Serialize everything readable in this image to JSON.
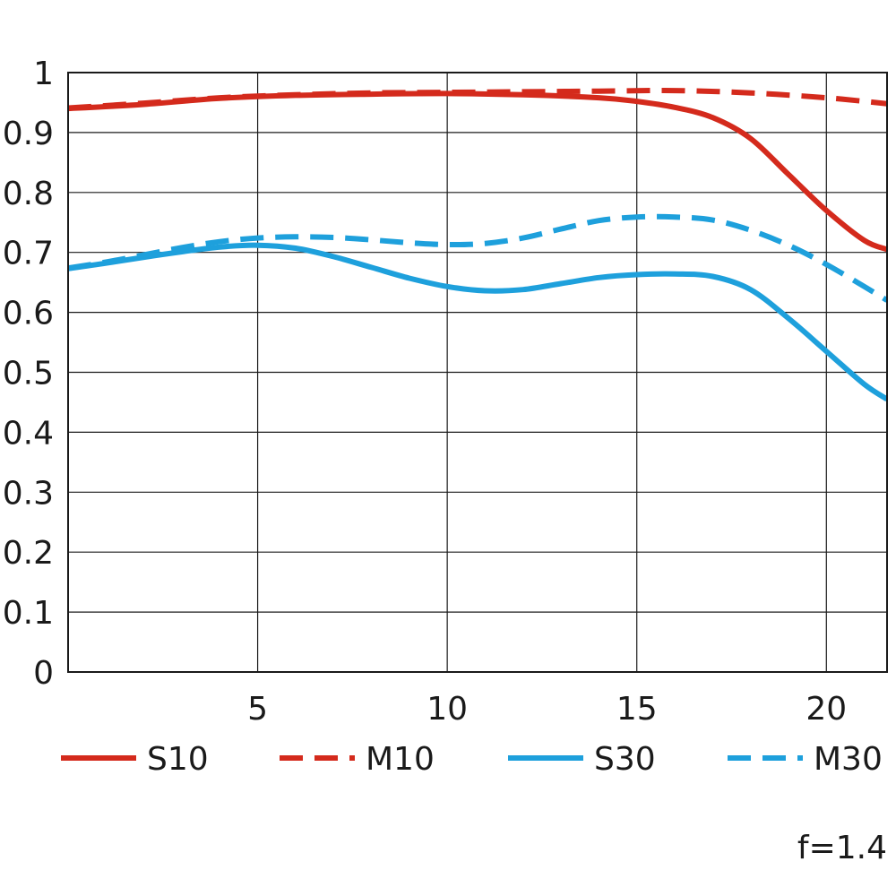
{
  "chart_data": {
    "type": "line",
    "title": "",
    "xlabel": "",
    "ylabel": "",
    "xlim": [
      0,
      21.6
    ],
    "ylim": [
      0,
      1
    ],
    "x_ticks": [
      5,
      10,
      15,
      20
    ],
    "x_tick_labels": [
      "5",
      "10",
      "15",
      "20"
    ],
    "y_ticks": [
      0,
      0.1,
      0.2,
      0.3,
      0.4,
      0.5,
      0.6,
      0.7,
      0.8,
      0.9,
      1
    ],
    "y_tick_labels": [
      "0",
      "0.1",
      "0.2",
      "0.3",
      "0.4",
      "0.5",
      "0.6",
      "0.7",
      "0.8",
      "0.9",
      "1"
    ],
    "grid": true,
    "legend_position": "bottom",
    "annotation": "f=1.4",
    "series": [
      {
        "name": "S10",
        "color": "#d42a1c",
        "dash": "solid",
        "points": [
          [
            0,
            0.94
          ],
          [
            2,
            0.947
          ],
          [
            4,
            0.957
          ],
          [
            6,
            0.962
          ],
          [
            8,
            0.964
          ],
          [
            10,
            0.965
          ],
          [
            12,
            0.963
          ],
          [
            14,
            0.958
          ],
          [
            15,
            0.952
          ],
          [
            16,
            0.942
          ],
          [
            17,
            0.925
          ],
          [
            18,
            0.89
          ],
          [
            19,
            0.83
          ],
          [
            20,
            0.77
          ],
          [
            21,
            0.72
          ],
          [
            21.6,
            0.705
          ]
        ]
      },
      {
        "name": "M10",
        "color": "#d42a1c",
        "dash": "dashed",
        "points": [
          [
            0,
            0.941
          ],
          [
            2,
            0.949
          ],
          [
            4,
            0.958
          ],
          [
            6,
            0.963
          ],
          [
            8,
            0.966
          ],
          [
            10,
            0.967
          ],
          [
            12,
            0.968
          ],
          [
            14,
            0.969
          ],
          [
            16,
            0.97
          ],
          [
            18,
            0.966
          ],
          [
            20,
            0.958
          ],
          [
            21.6,
            0.948
          ]
        ]
      },
      {
        "name": "S30",
        "color": "#1ea0dc",
        "dash": "solid",
        "points": [
          [
            0,
            0.673
          ],
          [
            1,
            0.682
          ],
          [
            2,
            0.692
          ],
          [
            3,
            0.701
          ],
          [
            4,
            0.709
          ],
          [
            5,
            0.712
          ],
          [
            6,
            0.707
          ],
          [
            7,
            0.693
          ],
          [
            8,
            0.675
          ],
          [
            9,
            0.657
          ],
          [
            10,
            0.643
          ],
          [
            11,
            0.636
          ],
          [
            12,
            0.638
          ],
          [
            13,
            0.648
          ],
          [
            14,
            0.658
          ],
          [
            15,
            0.663
          ],
          [
            16,
            0.664
          ],
          [
            17,
            0.66
          ],
          [
            18,
            0.638
          ],
          [
            19,
            0.59
          ],
          [
            20,
            0.535
          ],
          [
            21,
            0.48
          ],
          [
            21.6,
            0.455
          ]
        ]
      },
      {
        "name": "M30",
        "color": "#1ea0dc",
        "dash": "dashed",
        "points": [
          [
            0,
            0.674
          ],
          [
            1,
            0.684
          ],
          [
            2,
            0.696
          ],
          [
            3,
            0.708
          ],
          [
            4,
            0.718
          ],
          [
            5,
            0.724
          ],
          [
            6,
            0.726
          ],
          [
            7,
            0.725
          ],
          [
            8,
            0.721
          ],
          [
            9,
            0.716
          ],
          [
            10,
            0.713
          ],
          [
            11,
            0.715
          ],
          [
            12,
            0.724
          ],
          [
            13,
            0.739
          ],
          [
            14,
            0.753
          ],
          [
            15,
            0.759
          ],
          [
            16,
            0.759
          ],
          [
            17,
            0.754
          ],
          [
            18,
            0.737
          ],
          [
            19,
            0.712
          ],
          [
            20,
            0.68
          ],
          [
            21,
            0.643
          ],
          [
            21.6,
            0.62
          ]
        ]
      }
    ]
  }
}
